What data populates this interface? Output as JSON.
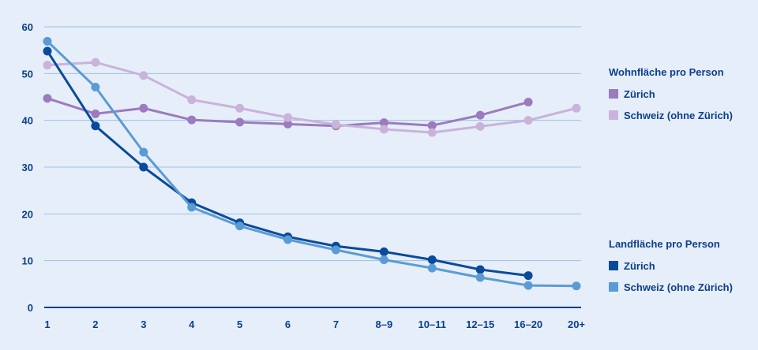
{
  "chart_data": {
    "type": "line",
    "categories": [
      "1",
      "2",
      "3",
      "4",
      "5",
      "6",
      "7",
      "8–9",
      "10–11",
      "12–15",
      "16–20",
      "20+"
    ],
    "ylim": [
      0,
      60
    ],
    "yticks": [
      "0",
      "10",
      "20",
      "30",
      "40",
      "50",
      "60"
    ],
    "grid": true,
    "legend_groups": [
      {
        "title": "Wohnfläche pro Person",
        "series": [
          {
            "name": "Zürich",
            "color": "#9b7bbd",
            "values": [
              44.7,
              41.4,
              42.6,
              40.1,
              39.6,
              39.2,
              38.8,
              39.5,
              38.9,
              41.1,
              43.9,
              null
            ]
          },
          {
            "name": "Schweiz (ohne Zürich)",
            "color": "#c9b3da",
            "values": [
              51.8,
              52.4,
              49.6,
              44.4,
              42.6,
              40.6,
              39.1,
              38.1,
              37.4,
              38.7,
              40.0,
              42.6
            ]
          }
        ]
      },
      {
        "title": "Landfläche pro Person",
        "series": [
          {
            "name": "Zürich",
            "color": "#0a4a9c",
            "values": [
              54.8,
              38.8,
              30.0,
              22.4,
              18.1,
              15.1,
              13.1,
              11.9,
              10.2,
              8.1,
              6.8,
              null
            ]
          },
          {
            "name": "Schweiz (ohne Zürich)",
            "color": "#5b9bd5",
            "values": [
              56.9,
              47.1,
              33.2,
              21.4,
              17.4,
              14.5,
              12.3,
              10.2,
              8.4,
              6.4,
              4.7,
              4.6
            ]
          }
        ]
      }
    ]
  }
}
